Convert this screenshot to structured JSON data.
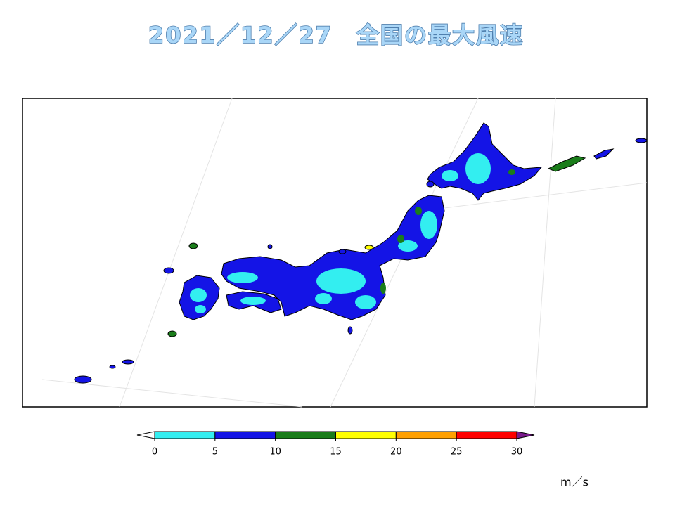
{
  "title": "2021／12／27　全国の最大風速",
  "legend": {
    "bins": [
      0,
      5,
      10,
      15,
      20,
      25,
      30
    ],
    "colors": [
      "#33eef0",
      "#1414e6",
      "#1a7d1a",
      "#ffff00",
      "#ffa000",
      "#ff0000"
    ],
    "under_color": "#ffffff",
    "over_color": "#7a1a8c",
    "unit": "m／s"
  }
}
